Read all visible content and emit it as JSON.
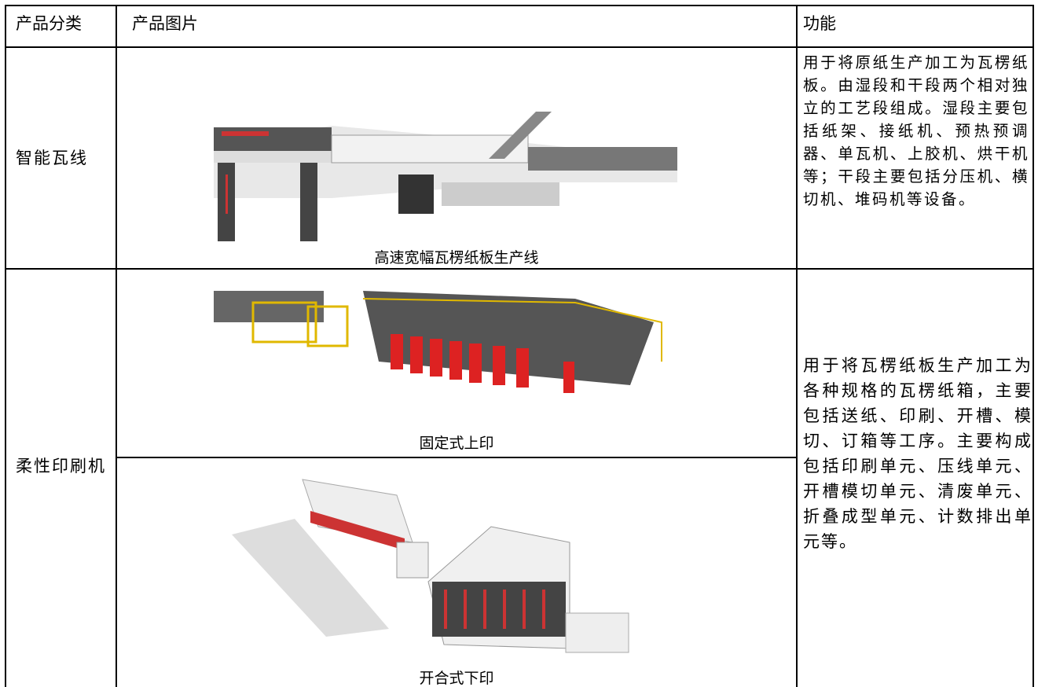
{
  "table": {
    "header": [
      "产品分类",
      "产品图片",
      "功能"
    ],
    "rows": [
      {
        "category": "智能瓦线",
        "images": [
          {
            "caption": "高速宽幅瓦楞纸板生产线"
          }
        ],
        "function": "用于将原纸生产加工为瓦楞纸板。由湿段和干段两个相对独立的工艺段组成。湿段主要包括纸架、接纸机、预热预调器、单瓦机、上胶机、烘干机等；干段主要包括分压机、横切机、堆码机等设备。"
      },
      {
        "category": "柔性印刷机",
        "images": [
          {
            "caption": "固定式上印"
          },
          {
            "caption": "开合式下印"
          }
        ],
        "function": "用于将瓦楞纸板生产加工为各种规格的瓦楞纸箱，主要包括送纸、印刷、开槽、模切、订箱等工序。主要构成包括印刷单元、压线单元、开槽模切单元、清废单元、折叠成型单元、计数排出单元等。"
      }
    ]
  }
}
